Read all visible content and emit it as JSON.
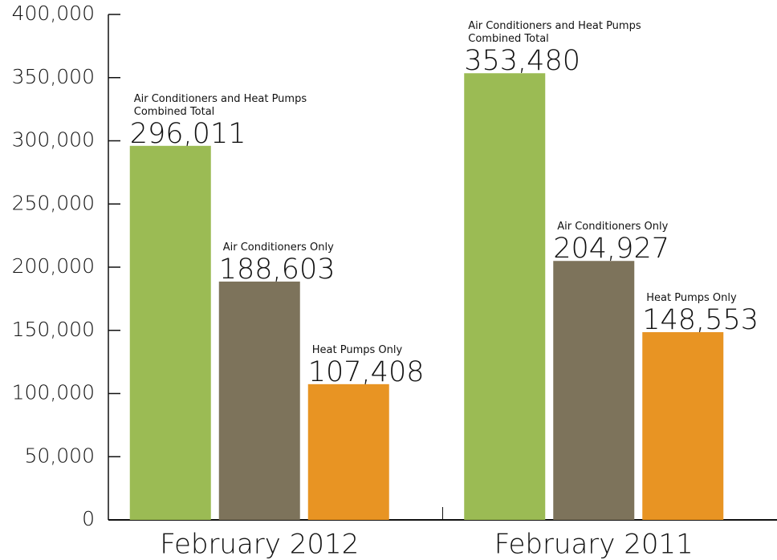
{
  "chart_data": {
    "type": "bar",
    "categories": [
      "February 2012",
      "February 2011"
    ],
    "series": [
      {
        "name": "Air Conditioners and Heat Pumps Combined Total",
        "color": "#9bbb54",
        "values": [
          296011,
          353480
        ],
        "value_labels": [
          "296,011",
          "353,480"
        ]
      },
      {
        "name": "Air Conditioners Only",
        "color": "#7d735b",
        "values": [
          188603,
          204927
        ],
        "value_labels": [
          "188,603",
          "204,927"
        ]
      },
      {
        "name": "Heat Pumps Only",
        "color": "#e89423",
        "values": [
          107408,
          148553
        ],
        "value_labels": [
          "107,408",
          "148,553"
        ]
      }
    ],
    "ylim": [
      0,
      400000
    ],
    "yticks": [
      0,
      {
        "value": 50000,
        "label": "50,000"
      },
      {
        "value": 100000,
        "label": "100,000"
      },
      {
        "value": 150000,
        "label": "150,000"
      },
      {
        "value": 200000,
        "label": "200,000"
      },
      {
        "value": 250000,
        "label": "250,000"
      },
      {
        "value": 300000,
        "label": "300,000"
      },
      {
        "value": 350000,
        "label": "350,000"
      },
      {
        "value": 400000,
        "label": "400,000"
      }
    ]
  }
}
